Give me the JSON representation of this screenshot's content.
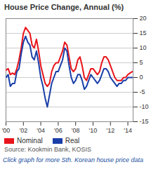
{
  "chart_data": {
    "type": "line",
    "title": "House Price Change, Annual (%)",
    "source": "Source: Kookmin Bank, KOSIS",
    "caption": "Click graph for more Sth. Korean house price data",
    "x": [
      2000,
      2000.25,
      2000.5,
      2000.75,
      2001,
      2001.25,
      2001.5,
      2001.75,
      2002,
      2002.25,
      2002.5,
      2002.75,
      2003,
      2003.25,
      2003.5,
      2003.75,
      2004,
      2004.25,
      2004.5,
      2004.75,
      2005,
      2005.25,
      2005.5,
      2005.75,
      2006,
      2006.25,
      2006.5,
      2006.75,
      2007,
      2007.25,
      2007.5,
      2007.75,
      2008,
      2008.25,
      2008.5,
      2008.75,
      2009,
      2009.25,
      2009.5,
      2009.75,
      2010,
      2010.25,
      2010.5,
      2010.75,
      2011,
      2011.25,
      2011.5,
      2011.75,
      2012,
      2012.25,
      2012.5,
      2012.75,
      2013,
      2013.25,
      2013.5,
      2013.75,
      2014,
      2014.25,
      2014.5
    ],
    "series": [
      {
        "name": "Nominal",
        "color": "#e8141b",
        "values": [
          2.5,
          3,
          1,
          1.5,
          1,
          3,
          6,
          10,
          15,
          17,
          16,
          15,
          11,
          10,
          13,
          9,
          4,
          1,
          -2,
          -3,
          -2,
          2,
          4,
          5,
          5,
          7,
          9,
          12,
          11,
          7,
          3,
          2,
          3,
          6,
          7,
          4,
          0,
          -1,
          1,
          3,
          3,
          2,
          1,
          2,
          5,
          7,
          7,
          6,
          4,
          2,
          0,
          -1,
          -1,
          -1,
          0,
          0,
          1,
          1.5,
          2
        ]
      },
      {
        "name": "Real",
        "color": "#1a3fa8",
        "values": [
          0,
          1,
          -3,
          -2,
          -2,
          2,
          3,
          8,
          12,
          14,
          12,
          11,
          7,
          6,
          9,
          5,
          0,
          -3,
          -7,
          -10,
          -6,
          -2,
          0,
          2,
          2,
          4,
          6,
          10,
          9,
          4,
          0,
          -2,
          -1,
          1,
          1,
          -1,
          -4,
          -3,
          -1,
          1,
          0,
          -1,
          -2,
          -1,
          1,
          3,
          3,
          2,
          0,
          -1,
          -2,
          -3,
          -2,
          -2,
          -1,
          -1,
          0,
          0,
          0
        ]
      }
    ],
    "xlim": [
      2000,
      2014.6
    ],
    "xticks": [
      {
        "value": 2000,
        "label": "'00"
      },
      {
        "value": 2002,
        "label": "'02"
      },
      {
        "value": 2004,
        "label": "'04"
      },
      {
        "value": 2006,
        "label": "'06"
      },
      {
        "value": 2008,
        "label": "'08"
      },
      {
        "value": 2010,
        "label": "'10"
      },
      {
        "value": 2012,
        "label": "'12"
      },
      {
        "value": 2014,
        "label": "'14"
      }
    ],
    "ylim": [
      -15,
      20
    ],
    "yticks": [
      -15,
      -10,
      -5,
      0,
      5,
      10,
      15,
      20
    ],
    "grid": true,
    "legend": "bottom"
  }
}
